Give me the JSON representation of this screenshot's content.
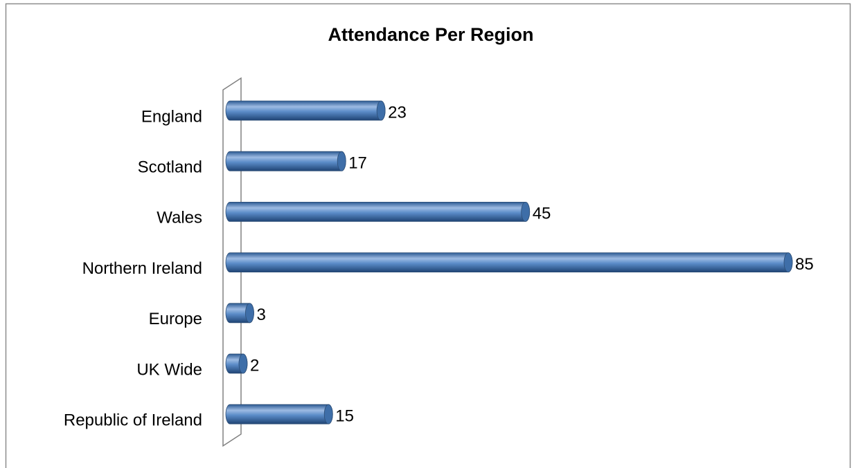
{
  "chart_data": {
    "type": "bar",
    "orientation": "horizontal",
    "title": "Attendance Per Region",
    "categories": [
      "England",
      "Scotland",
      "Wales",
      "Northern Ireland",
      "Europe",
      "UK Wide",
      "Republic of Ireland"
    ],
    "values": [
      23,
      17,
      45,
      85,
      3,
      2,
      15
    ],
    "color": "#4f81bd"
  }
}
